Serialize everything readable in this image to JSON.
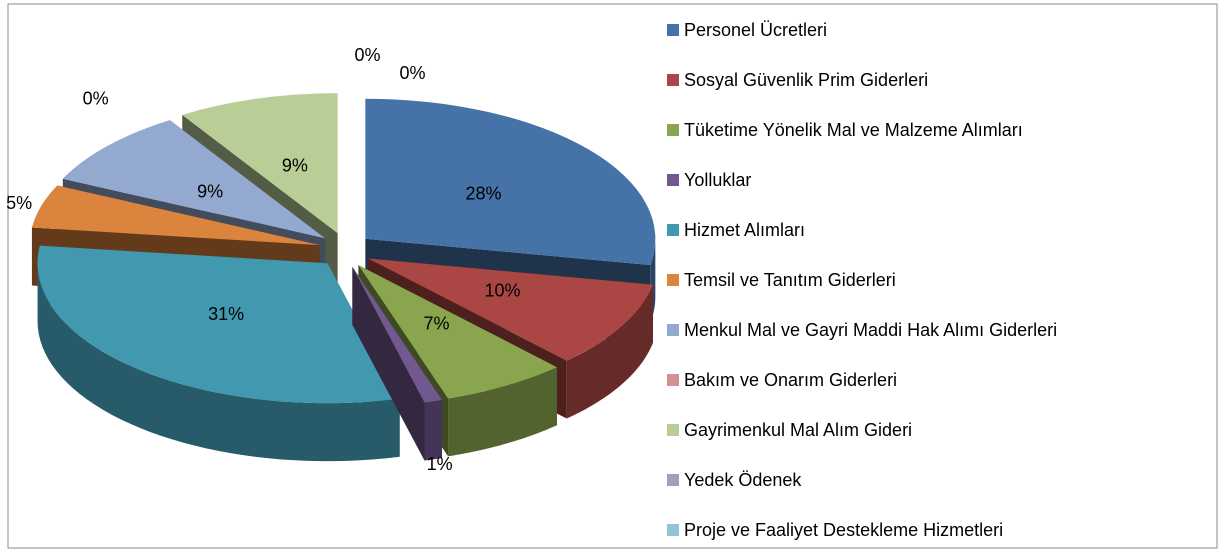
{
  "chart_data": {
    "type": "pie",
    "categories": [
      "Personel Ücretleri",
      "Sosyal Güvenlik Prim Giderleri",
      "Tüketime Yönelik Mal ve Malzeme Alımları",
      "Yolluklar",
      "Hizmet Alımları",
      "Temsil ve Tanıtım Giderleri",
      "Menkul Mal ve Gayri Maddi Hak Alımı Giderleri",
      "Bakım ve Onarım Giderleri",
      "Gayrimenkul Mal Alım Gideri",
      "Yedek Ödenek",
      "Proje ve Faaliyet Destekleme Hizmetleri"
    ],
    "values": [
      28,
      10,
      7,
      1,
      31,
      5,
      9,
      0,
      9,
      0,
      0
    ],
    "value_labels": [
      "28%",
      "10%",
      "7%",
      "1%",
      "31%",
      "5%",
      "9%",
      "0%",
      "9%",
      "0%",
      "0%"
    ],
    "colors": [
      "#4572a7",
      "#aa4643",
      "#89a54e",
      "#71588f",
      "#4198af",
      "#db843d",
      "#93a9cf",
      "#d19392",
      "#b9cd96",
      "#a99bbd",
      "#92c5d6"
    ],
    "legend": "right"
  }
}
